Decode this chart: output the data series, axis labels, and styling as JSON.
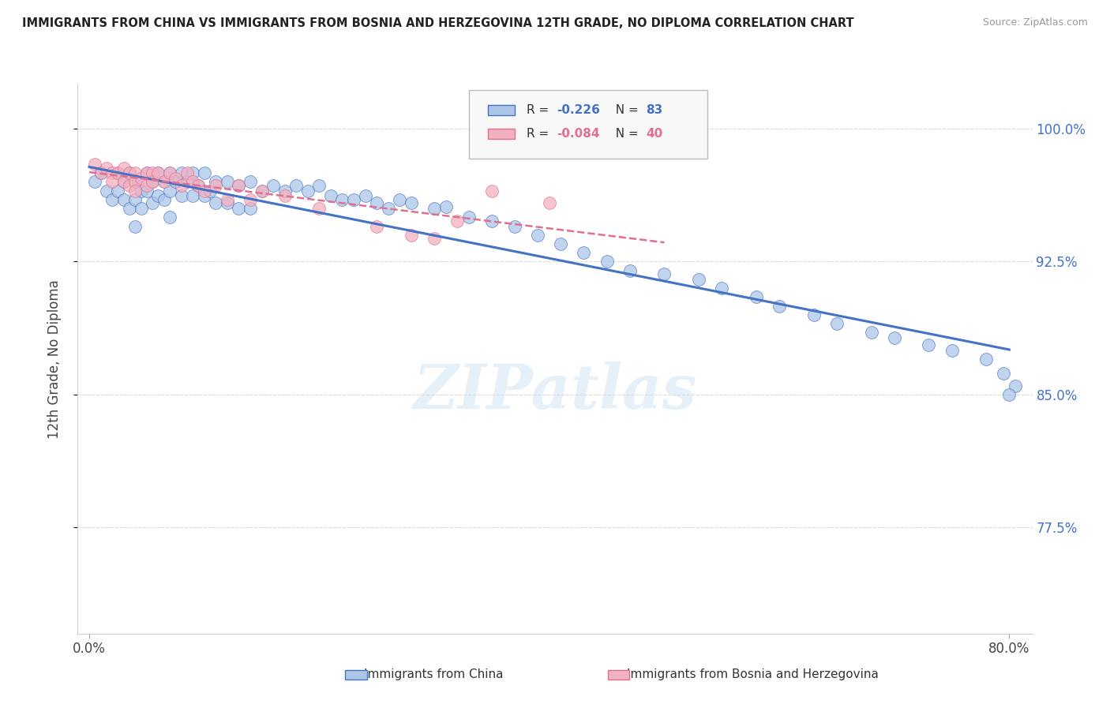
{
  "title": "IMMIGRANTS FROM CHINA VS IMMIGRANTS FROM BOSNIA AND HERZEGOVINA 12TH GRADE, NO DIPLOMA CORRELATION CHART",
  "source": "Source: ZipAtlas.com",
  "ylabel": "12th Grade, No Diploma",
  "watermark": "ZIPatlas",
  "legend_china": "Immigrants from China",
  "legend_bosnia": "Immigrants from Bosnia and Herzegovina",
  "r_china": -0.226,
  "n_china": 83,
  "r_bosnia": -0.084,
  "n_bosnia": 40,
  "xlim": [
    -0.01,
    0.82
  ],
  "ylim": [
    0.715,
    1.025
  ],
  "ytick_labels": [
    "77.5%",
    "85.0%",
    "92.5%",
    "100.0%"
  ],
  "ytick_values": [
    0.775,
    0.85,
    0.925,
    1.0
  ],
  "color_china": "#adc6e8",
  "color_bosnia": "#f2b0c0",
  "trendline_china": "#4472c4",
  "trendline_bosnia": "#e07090",
  "background": "#ffffff",
  "grid_color": "#d8d8d8",
  "china_x": [
    0.005,
    0.01,
    0.015,
    0.02,
    0.025,
    0.025,
    0.03,
    0.03,
    0.035,
    0.035,
    0.04,
    0.04,
    0.04,
    0.045,
    0.045,
    0.05,
    0.05,
    0.055,
    0.055,
    0.06,
    0.06,
    0.065,
    0.065,
    0.07,
    0.07,
    0.07,
    0.075,
    0.08,
    0.08,
    0.085,
    0.09,
    0.09,
    0.095,
    0.1,
    0.1,
    0.105,
    0.11,
    0.11,
    0.12,
    0.12,
    0.13,
    0.13,
    0.14,
    0.14,
    0.15,
    0.16,
    0.17,
    0.18,
    0.19,
    0.2,
    0.21,
    0.22,
    0.23,
    0.24,
    0.25,
    0.26,
    0.27,
    0.28,
    0.3,
    0.31,
    0.33,
    0.35,
    0.37,
    0.39,
    0.41,
    0.43,
    0.45,
    0.47,
    0.5,
    0.53,
    0.55,
    0.58,
    0.6,
    0.63,
    0.65,
    0.68,
    0.7,
    0.73,
    0.75,
    0.78,
    0.795,
    0.805,
    0.8
  ],
  "china_y": [
    0.97,
    0.975,
    0.965,
    0.96,
    0.975,
    0.965,
    0.97,
    0.96,
    0.975,
    0.955,
    0.97,
    0.96,
    0.945,
    0.965,
    0.955,
    0.975,
    0.965,
    0.97,
    0.958,
    0.975,
    0.962,
    0.97,
    0.96,
    0.975,
    0.965,
    0.95,
    0.97,
    0.975,
    0.962,
    0.97,
    0.975,
    0.962,
    0.968,
    0.975,
    0.962,
    0.965,
    0.97,
    0.958,
    0.97,
    0.958,
    0.968,
    0.955,
    0.97,
    0.955,
    0.965,
    0.968,
    0.965,
    0.968,
    0.965,
    0.968,
    0.962,
    0.96,
    0.96,
    0.962,
    0.958,
    0.955,
    0.96,
    0.958,
    0.955,
    0.956,
    0.95,
    0.948,
    0.945,
    0.94,
    0.935,
    0.93,
    0.925,
    0.92,
    0.918,
    0.915,
    0.91,
    0.905,
    0.9,
    0.895,
    0.89,
    0.885,
    0.882,
    0.878,
    0.875,
    0.87,
    0.862,
    0.855,
    0.85
  ],
  "bosnia_x": [
    0.005,
    0.01,
    0.015,
    0.02,
    0.02,
    0.025,
    0.03,
    0.03,
    0.035,
    0.035,
    0.04,
    0.04,
    0.04,
    0.045,
    0.05,
    0.05,
    0.055,
    0.055,
    0.06,
    0.065,
    0.07,
    0.075,
    0.08,
    0.085,
    0.09,
    0.095,
    0.1,
    0.11,
    0.12,
    0.13,
    0.14,
    0.15,
    0.17,
    0.2,
    0.25,
    0.28,
    0.3,
    0.32,
    0.35,
    0.4
  ],
  "bosnia_y": [
    0.98,
    0.975,
    0.978,
    0.975,
    0.97,
    0.975,
    0.978,
    0.97,
    0.975,
    0.968,
    0.975,
    0.97,
    0.965,
    0.972,
    0.975,
    0.968,
    0.975,
    0.97,
    0.975,
    0.97,
    0.975,
    0.972,
    0.968,
    0.975,
    0.97,
    0.968,
    0.965,
    0.968,
    0.96,
    0.968,
    0.96,
    0.965,
    0.962,
    0.955,
    0.945,
    0.94,
    0.938,
    0.948,
    0.965,
    0.958
  ]
}
